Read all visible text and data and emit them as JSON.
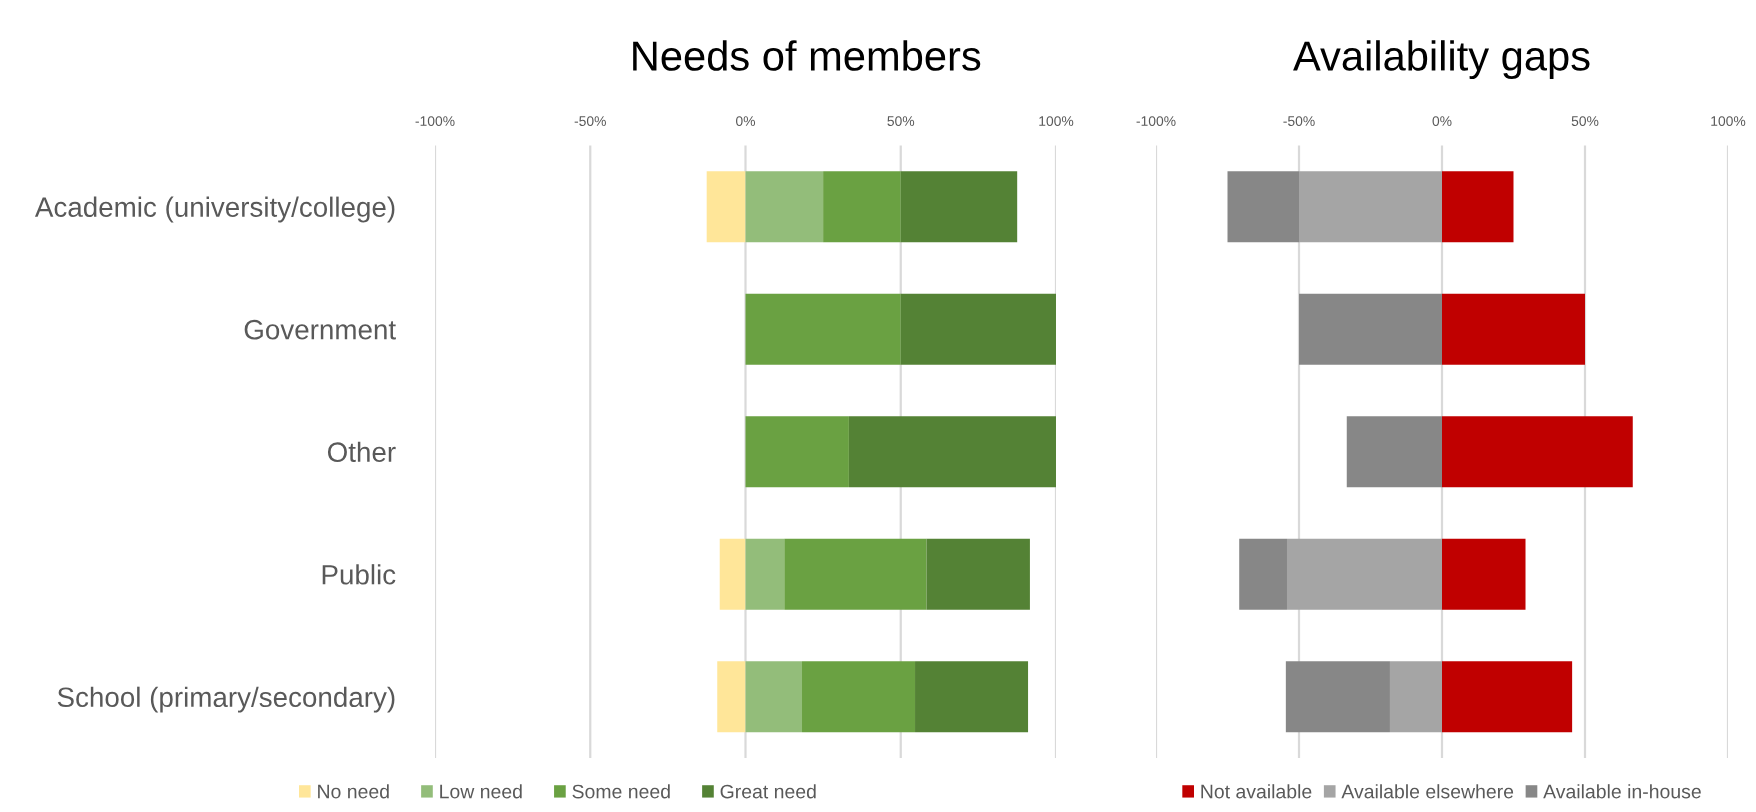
{
  "chart_data": [
    {
      "type": "bar",
      "orientation": "horizontal",
      "stacked": true,
      "title": "Needs of members",
      "categories": [
        "Academic (university/college)",
        "Government",
        "Other",
        "Public",
        "School (primary/secondary)"
      ],
      "series": [
        {
          "name": "No need",
          "color": "#ffe699",
          "values": [
            -12.5,
            null,
            null,
            -8.3,
            -9.1
          ]
        },
        {
          "name": "Low need",
          "color": "#93bd7a",
          "values": [
            25,
            null,
            null,
            12.5,
            18.2
          ]
        },
        {
          "name": "Some need",
          "color": "#6aa142",
          "values": [
            25,
            50,
            33.3,
            45.8,
            36.4
          ]
        },
        {
          "name": "Great need",
          "color": "#548235",
          "values": [
            37.5,
            50,
            66.7,
            33.3,
            36.4
          ]
        }
      ],
      "xlim": [
        -100,
        100
      ],
      "xticks": [
        {
          "value": -100,
          "label": "-100%"
        },
        {
          "value": -50,
          "label": "-50%"
        },
        {
          "value": 0,
          "label": "0%"
        },
        {
          "value": 50,
          "label": "50%"
        },
        {
          "value": 100,
          "label": "100%"
        }
      ],
      "grid": "x",
      "legend": "bottom"
    },
    {
      "type": "bar",
      "orientation": "horizontal",
      "stacked": true,
      "title": "Availability gaps",
      "categories": [
        null,
        null,
        null,
        null,
        null
      ],
      "series": [
        {
          "name": "Not available",
          "color": "#c00000",
          "values": [
            25,
            50,
            66.7,
            29.2,
            45.5
          ]
        },
        {
          "name": "Available elsewhere",
          "color": "#a5a5a5",
          "values": [
            -50,
            null,
            null,
            -54.2,
            -18.2
          ]
        },
        {
          "name": "Available in-house",
          "color": "#878787",
          "values": [
            -25,
            -50,
            -33.3,
            -16.7,
            -36.4
          ]
        }
      ],
      "xlim": [
        -100,
        100
      ],
      "xticks": [
        {
          "value": -100,
          "label": "-100%"
        },
        {
          "value": -50,
          "label": "-50%"
        },
        {
          "value": 0,
          "label": "0%"
        },
        {
          "value": 50,
          "label": "50%"
        },
        {
          "value": 100,
          "label": "100%"
        }
      ],
      "grid": "x",
      "legend": "bottom",
      "tick_labels": "x"
    }
  ]
}
